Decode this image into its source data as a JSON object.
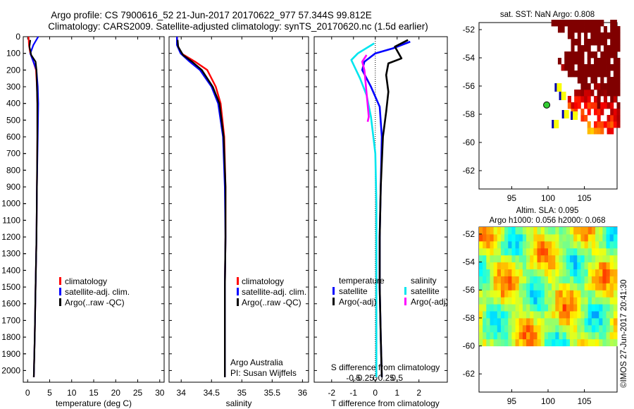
{
  "header": {
    "title_line1": "Argo profile: CS 7900616_52 21-Jun-2017 20170622_977 57.344S 99.812E",
    "title_line2": "Climatology: CARS2009. Satellite-adjusted climatology: synTS_20170620.nc (1.5d earlier)"
  },
  "chart_data": [
    {
      "type": "line",
      "id": "temperature",
      "xlabel": "temperature (deg C)",
      "ylabel": "",
      "xlim": [
        -1,
        31
      ],
      "ylim": [
        2070,
        0
      ],
      "xticks": [
        "0",
        "5",
        "10",
        "15",
        "20",
        "25",
        "30"
      ],
      "yticks": [
        "0",
        "100",
        "200",
        "300",
        "400",
        "500",
        "600",
        "700",
        "800",
        "900",
        "1000",
        "1100",
        "1200",
        "1300",
        "1400",
        "1500",
        "1600",
        "1700",
        "1800",
        "1900",
        "2000"
      ],
      "legend_position": "lower-center",
      "series": [
        {
          "name": "climatology",
          "color": "#ff0000",
          "points": [
            [
              0.2,
              0
            ],
            [
              0.3,
              50
            ],
            [
              0.6,
              100
            ],
            [
              1.3,
              150
            ],
            [
              1.9,
              200
            ],
            [
              2.1,
              300
            ],
            [
              2.2,
              400
            ],
            [
              2.2,
              600
            ],
            [
              2.1,
              900
            ],
            [
              2.0,
              1200
            ],
            [
              1.8,
              1500
            ],
            [
              1.6,
              1800
            ],
            [
              1.4,
              2040
            ]
          ]
        },
        {
          "name": "satellite-adj. clim.",
          "color": "#0000ff",
          "points": [
            [
              2.4,
              0
            ],
            [
              1.3,
              50
            ],
            [
              0.6,
              100
            ],
            [
              1.3,
              150
            ],
            [
              2.0,
              200
            ],
            [
              2.3,
              300
            ],
            [
              2.4,
              400
            ],
            [
              2.3,
              600
            ],
            [
              2.1,
              900
            ],
            [
              2.0,
              1200
            ],
            [
              1.8,
              1500
            ],
            [
              1.6,
              1800
            ],
            [
              1.4,
              2040
            ]
          ]
        },
        {
          "name": "Argo(..raw -QC)",
          "color": "#000000",
          "points": [
            [
              0.6,
              20
            ],
            [
              0.4,
              60
            ],
            [
              0.8,
              110
            ],
            [
              1.8,
              150
            ],
            [
              2.0,
              200
            ],
            [
              2.1,
              300
            ],
            [
              2.2,
              400
            ],
            [
              2.2,
              600
            ],
            [
              2.1,
              900
            ],
            [
              2.0,
              1200
            ],
            [
              1.8,
              1500
            ],
            [
              1.6,
              1800
            ],
            [
              1.4,
              2040
            ]
          ]
        }
      ]
    },
    {
      "type": "line",
      "id": "salinity",
      "xlabel": "salinity",
      "ylabel": "",
      "xlim": [
        33.8,
        36.1
      ],
      "ylim": [
        2070,
        0
      ],
      "xticks": [
        "34",
        "34.5",
        "35",
        "35.5",
        "36"
      ],
      "legend_position": "lower-center",
      "annotation": [
        "Argo Australia",
        "PI: Susan Wijffels"
      ],
      "series": [
        {
          "name": "climatology",
          "color": "#ff0000",
          "points": [
            [
              33.93,
              0
            ],
            [
              33.94,
              50
            ],
            [
              34.0,
              100
            ],
            [
              34.23,
              150
            ],
            [
              34.43,
              200
            ],
            [
              34.57,
              300
            ],
            [
              34.65,
              400
            ],
            [
              34.71,
              600
            ],
            [
              34.73,
              900
            ],
            [
              34.73,
              1200
            ],
            [
              34.72,
              1500
            ],
            [
              34.72,
              1800
            ],
            [
              34.72,
              2040
            ]
          ]
        },
        {
          "name": "satellite-adj. clim.",
          "color": "#0000ff",
          "points": [
            [
              33.93,
              0
            ],
            [
              33.93,
              50
            ],
            [
              33.99,
              100
            ],
            [
              34.14,
              150
            ],
            [
              34.31,
              200
            ],
            [
              34.5,
              300
            ],
            [
              34.61,
              400
            ],
            [
              34.69,
              600
            ],
            [
              34.72,
              900
            ],
            [
              34.73,
              1200
            ],
            [
              34.72,
              1500
            ],
            [
              34.72,
              1800
            ],
            [
              34.72,
              2040
            ]
          ]
        },
        {
          "name": "Argo(..raw -QC)",
          "color": "#000000",
          "points": [
            [
              33.94,
              20
            ],
            [
              33.95,
              60
            ],
            [
              34.03,
              110
            ],
            [
              34.18,
              150
            ],
            [
              34.34,
              200
            ],
            [
              34.52,
              300
            ],
            [
              34.63,
              400
            ],
            [
              34.7,
              600
            ],
            [
              34.73,
              900
            ],
            [
              34.73,
              1200
            ],
            [
              34.72,
              1500
            ],
            [
              34.72,
              1800
            ],
            [
              34.72,
              2040
            ]
          ]
        }
      ]
    },
    {
      "type": "line",
      "id": "difference",
      "xlabel": "T difference from climatology",
      "xlabel_top": "S difference from climatology",
      "xlim": [
        -2.8,
        3.3
      ],
      "ylim": [
        2070,
        0
      ],
      "xticks": [
        "-2",
        "-1",
        "0",
        "1",
        "2"
      ],
      "s_xticks": [
        "-0.5",
        "-0.25",
        "0",
        "0.25",
        "0.5"
      ],
      "legend_position": "lower-center",
      "legend_headers": [
        "temperature",
        "salinity"
      ],
      "series": [
        {
          "name": "satellite",
          "group": "temperature",
          "color": "#0000ff",
          "points": [
            [
              1.6,
              30
            ],
            [
              0.8,
              70
            ],
            [
              0.0,
              100
            ],
            [
              -0.5,
              150
            ],
            [
              -0.6,
              200
            ],
            [
              -0.2,
              300
            ],
            [
              0.2,
              420
            ],
            [
              0.3,
              600
            ],
            [
              0.25,
              900
            ],
            [
              0.2,
              1200
            ],
            [
              0.2,
              1500
            ],
            [
              0.25,
              1800
            ],
            [
              0.3,
              2040
            ]
          ]
        },
        {
          "name": "Argo(-adj)",
          "group": "temperature",
          "color": "#000000",
          "points": [
            [
              1.5,
              20
            ],
            [
              0.9,
              60
            ],
            [
              1.2,
              130
            ],
            [
              0.6,
              160
            ],
            [
              0.5,
              230
            ],
            [
              0.6,
              330
            ],
            [
              0.5,
              450
            ],
            [
              0.35,
              600
            ],
            [
              0.25,
              900
            ],
            [
              0.2,
              1200
            ],
            [
              0.2,
              1500
            ],
            [
              0.25,
              1800
            ],
            [
              0.3,
              2040
            ]
          ]
        },
        {
          "name": "satellite",
          "group": "salinity",
          "color": "#00e5ee",
          "points": [
            [
              -0.05,
              40
            ],
            [
              -0.8,
              100
            ],
            [
              -1.1,
              140
            ],
            [
              -0.7,
              250
            ],
            [
              -0.4,
              350
            ],
            [
              -0.2,
              480
            ],
            [
              0.0,
              700
            ],
            [
              0.05,
              1000
            ],
            [
              0.05,
              1300
            ],
            [
              0.05,
              1600
            ],
            [
              0.05,
              1900
            ],
            [
              0.05,
              2040
            ]
          ]
        },
        {
          "name": "Argo(-adj)",
          "group": "salinity",
          "color": "#ff00ff",
          "points": [
            [
              -0.4,
              110
            ],
            [
              -0.6,
              150
            ],
            [
              -0.5,
              200
            ],
            [
              -0.3,
              480
            ],
            [
              -0.35,
              510
            ]
          ]
        }
      ]
    },
    {
      "type": "heatmap",
      "id": "sst_map",
      "title": "sat. SST: NaN Argo: 0.808",
      "xticks": [
        "95",
        "100",
        "105"
      ],
      "yticks": [
        "-52",
        "-54",
        "-56",
        "-58",
        "-60",
        "-62"
      ],
      "xlim": [
        90.5,
        109.5
      ],
      "ylim": [
        -63.3,
        -51.5
      ],
      "marker": {
        "lon": 99.812,
        "lat": -57.344
      }
    },
    {
      "type": "heatmap",
      "id": "sla_map",
      "title_line1": "Altim. SLA: 0.095",
      "title_line2": "Argo h1000: 0.056 h2000: 0.068",
      "xticks": [
        "95",
        "100",
        "105"
      ],
      "yticks": [
        "-52",
        "-54",
        "-56",
        "-58",
        "-60",
        "-62"
      ],
      "xlim": [
        90.5,
        109.5
      ],
      "ylim": [
        -63.3,
        -51.5
      ]
    }
  ],
  "footer_stamp": "©IMOS 27-Jun-2017 20:41:30"
}
